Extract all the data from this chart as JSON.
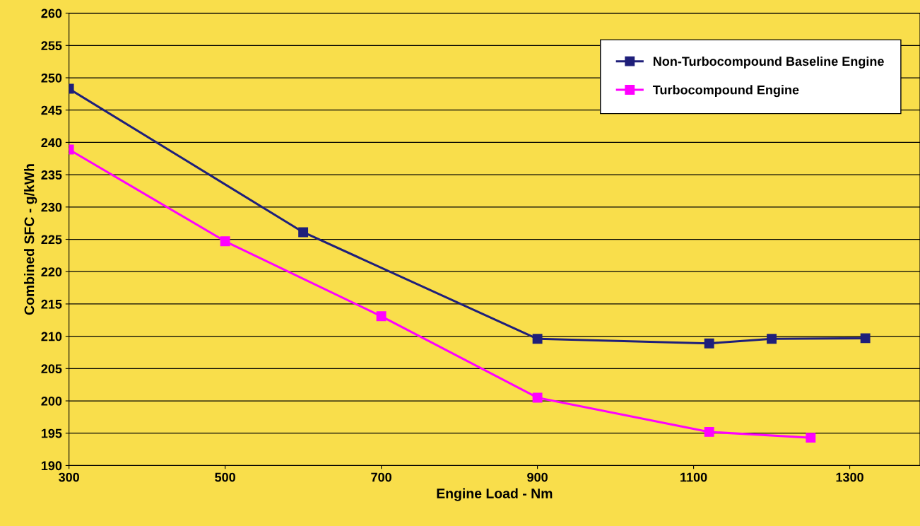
{
  "chart_data": {
    "type": "line",
    "xlabel": "Engine Load - Nm",
    "ylabel": "Combined SFC - g/kWh",
    "xlim": [
      300,
      1390
    ],
    "xticks": [
      300,
      500,
      700,
      900,
      1100,
      1300
    ],
    "ylim": [
      190,
      260
    ],
    "yticks": [
      190,
      195,
      200,
      205,
      210,
      215,
      220,
      225,
      230,
      235,
      240,
      245,
      250,
      255,
      260
    ],
    "grid": "y",
    "legend": "top right",
    "marker": "square",
    "line_style": "solid",
    "series": [
      {
        "name": "Non-Turbocompound Baseline Engine",
        "color": "#1f1f7a",
        "x": [
          300,
          600,
          900,
          1120,
          1200,
          1320
        ],
        "values": [
          248.3,
          226.1,
          209.6,
          208.9,
          209.6,
          209.7
        ]
      },
      {
        "name": "Turbocompound Engine",
        "color": "#ff00ff",
        "x": [
          300,
          500,
          700,
          900,
          1120,
          1250
        ],
        "values": [
          238.9,
          224.7,
          213.1,
          200.5,
          195.2,
          194.3
        ]
      }
    ]
  }
}
